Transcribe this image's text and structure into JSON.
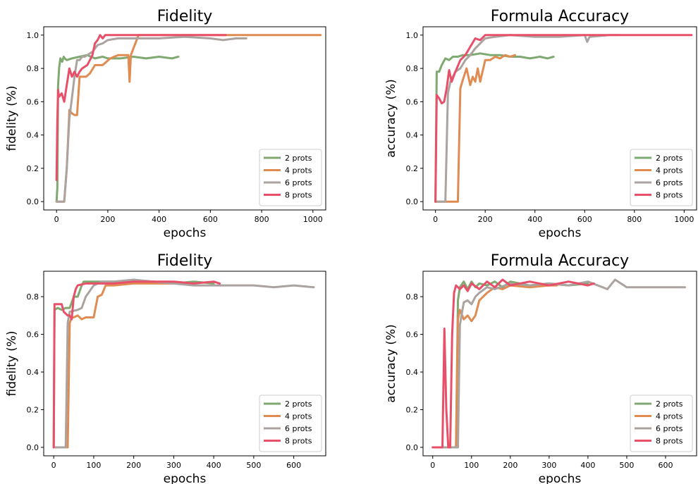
{
  "chart_data": [
    {
      "type": "line",
      "title": "Fidelity",
      "xlabel": "epochs",
      "ylabel": "fidelity (%)",
      "xlim": [
        -50,
        1050
      ],
      "ylim": [
        -0.05,
        1.05
      ],
      "xticks": [
        0,
        200,
        400,
        600,
        800,
        1000
      ],
      "yticks": [
        0.0,
        0.2,
        0.4,
        0.6,
        0.8,
        1.0
      ],
      "legend": "bottom-right",
      "series": [
        {
          "name": "2 prots",
          "color": "#7fa970",
          "x": [
            0,
            3,
            6,
            10,
            15,
            22,
            28,
            32,
            40,
            60,
            90,
            120,
            150,
            180,
            200,
            250,
            300,
            350,
            400,
            450,
            475
          ],
          "y": [
            0.0,
            0.08,
            0.7,
            0.8,
            0.86,
            0.84,
            0.87,
            0.86,
            0.85,
            0.86,
            0.87,
            0.88,
            0.86,
            0.87,
            0.86,
            0.86,
            0.87,
            0.86,
            0.87,
            0.86,
            0.87
          ]
        },
        {
          "name": "4 prots",
          "color": "#df8b52",
          "x": [
            0,
            20,
            30,
            40,
            50,
            60,
            70,
            80,
            90,
            100,
            115,
            130,
            150,
            180,
            210,
            240,
            280,
            285,
            290,
            320,
            400,
            500,
            600,
            700,
            800,
            900,
            1000,
            1030
          ],
          "y": [
            0.0,
            0.0,
            0.0,
            0.2,
            0.55,
            0.53,
            0.52,
            0.52,
            0.75,
            0.75,
            0.75,
            0.77,
            0.82,
            0.82,
            0.86,
            0.88,
            0.88,
            0.72,
            0.88,
            1.0,
            1.0,
            1.0,
            1.0,
            1.0,
            1.0,
            1.0,
            1.0,
            1.0
          ]
        },
        {
          "name": "6 prots",
          "color": "#aaa39f",
          "x": [
            0,
            30,
            40,
            50,
            60,
            70,
            80,
            90,
            100,
            110,
            140,
            160,
            180,
            200,
            240,
            300,
            400,
            500,
            600,
            650,
            700,
            740
          ],
          "y": [
            0.0,
            0.0,
            0.2,
            0.5,
            0.62,
            0.75,
            0.85,
            0.85,
            0.87,
            0.87,
            0.9,
            0.94,
            0.95,
            0.97,
            0.98,
            0.98,
            0.98,
            0.99,
            0.98,
            0.97,
            0.98,
            0.98
          ]
        },
        {
          "name": "8 prots",
          "color": "#e8506a",
          "x": [
            0,
            3,
            6,
            10,
            20,
            30,
            40,
            50,
            60,
            70,
            80,
            90,
            100,
            120,
            140,
            150,
            160,
            170,
            180,
            190,
            200,
            300,
            400,
            500,
            600,
            640,
            660
          ],
          "y": [
            0.13,
            0.48,
            0.67,
            0.63,
            0.65,
            0.6,
            0.7,
            0.8,
            0.75,
            0.78,
            0.75,
            0.78,
            0.8,
            0.82,
            0.88,
            0.95,
            0.97,
            1.0,
            0.98,
            1.0,
            1.0,
            1.0,
            1.0,
            1.0,
            1.0,
            1.0,
            1.0
          ]
        }
      ]
    },
    {
      "type": "line",
      "title": "Formula Accuracy",
      "xlabel": "epochs",
      "ylabel": "accuracy (%)",
      "xlim": [
        -50,
        1050
      ],
      "ylim": [
        -0.05,
        1.05
      ],
      "xticks": [
        0,
        200,
        400,
        600,
        800,
        1000
      ],
      "yticks": [
        0.0,
        0.2,
        0.4,
        0.6,
        0.8,
        1.0
      ],
      "legend": "bottom-right",
      "series": [
        {
          "name": "2 prots",
          "color": "#7fa970",
          "x": [
            0,
            5,
            15,
            25,
            40,
            55,
            70,
            90,
            110,
            140,
            180,
            220,
            260,
            300,
            340,
            380,
            420,
            450,
            475
          ],
          "y": [
            0.0,
            0.78,
            0.78,
            0.82,
            0.86,
            0.85,
            0.87,
            0.87,
            0.88,
            0.88,
            0.89,
            0.88,
            0.88,
            0.87,
            0.87,
            0.86,
            0.87,
            0.86,
            0.87
          ]
        },
        {
          "name": "4 prots",
          "color": "#df8b52",
          "x": [
            0,
            90,
            100,
            110,
            125,
            140,
            150,
            160,
            170,
            180,
            200,
            220,
            240,
            260,
            280,
            300,
            320
          ],
          "y": [
            0.0,
            0.0,
            0.68,
            0.73,
            0.8,
            0.7,
            0.75,
            0.72,
            0.8,
            0.72,
            0.85,
            0.85,
            0.87,
            0.86,
            0.88,
            0.87,
            0.88
          ]
        },
        {
          "name": "6 prots",
          "color": "#aaa39f",
          "x": [
            0,
            40,
            50,
            60,
            70,
            80,
            100,
            120,
            140,
            160,
            180,
            200,
            240,
            300,
            400,
            500,
            600,
            610,
            620,
            700,
            740
          ],
          "y": [
            0.0,
            0.0,
            0.65,
            0.72,
            0.75,
            0.78,
            0.8,
            0.85,
            0.88,
            0.92,
            0.95,
            0.98,
            0.99,
            1.0,
            0.99,
            0.99,
            1.0,
            0.96,
            0.99,
            1.0,
            1.0
          ]
        },
        {
          "name": "8 prots",
          "color": "#e8506a",
          "x": [
            0,
            5,
            15,
            25,
            35,
            45,
            55,
            65,
            80,
            100,
            120,
            140,
            160,
            180,
            200,
            300,
            400,
            500,
            600,
            700,
            800,
            900,
            1000,
            1030
          ],
          "y": [
            0.0,
            0.64,
            0.62,
            0.59,
            0.6,
            0.68,
            0.79,
            0.72,
            0.78,
            0.85,
            0.88,
            0.93,
            0.98,
            0.97,
            1.0,
            1.0,
            1.0,
            1.0,
            1.0,
            1.0,
            1.0,
            1.0,
            1.0,
            1.0
          ]
        }
      ]
    },
    {
      "type": "line",
      "title": "Fidelity",
      "xlabel": "epochs",
      "ylabel": "fidelity (%)",
      "xlim": [
        -25,
        680
      ],
      "ylim": [
        -0.045,
        0.935
      ],
      "xticks": [
        0,
        100,
        200,
        300,
        400,
        500,
        600
      ],
      "yticks": [
        0.0,
        0.2,
        0.4,
        0.6,
        0.8
      ],
      "legend": "bottom-right",
      "series": [
        {
          "name": "2 prots",
          "color": "#7fa970",
          "x": [
            0,
            2,
            10,
            20,
            30,
            40,
            50,
            60,
            70,
            75,
            80,
            100,
            150,
            200,
            250,
            300,
            350,
            400
          ],
          "y": [
            0.0,
            0.73,
            0.74,
            0.73,
            0.74,
            0.74,
            0.8,
            0.8,
            0.86,
            0.88,
            0.88,
            0.88,
            0.88,
            0.88,
            0.88,
            0.87,
            0.88,
            0.87
          ]
        },
        {
          "name": "4 prots",
          "color": "#df8b52",
          "x": [
            0,
            35,
            40,
            45,
            50,
            60,
            70,
            80,
            90,
            100,
            110,
            120,
            130,
            140,
            150,
            200,
            250,
            300,
            330
          ],
          "y": [
            0.0,
            0.0,
            0.66,
            0.69,
            0.69,
            0.7,
            0.68,
            0.69,
            0.69,
            0.69,
            0.8,
            0.81,
            0.86,
            0.86,
            0.86,
            0.87,
            0.87,
            0.87,
            0.87
          ]
        },
        {
          "name": "6 prots",
          "color": "#aaa39f",
          "x": [
            0,
            30,
            35,
            40,
            60,
            70,
            80,
            100,
            120,
            150,
            200,
            250,
            300,
            350,
            400,
            450,
            500,
            550,
            600,
            650
          ],
          "y": [
            0.0,
            0.0,
            0.66,
            0.72,
            0.73,
            0.74,
            0.8,
            0.86,
            0.88,
            0.88,
            0.89,
            0.88,
            0.87,
            0.86,
            0.86,
            0.86,
            0.86,
            0.85,
            0.86,
            0.85
          ]
        },
        {
          "name": "8 prots",
          "color": "#e8506a",
          "x": [
            0,
            2,
            20,
            25,
            30,
            35,
            40,
            45,
            50,
            55,
            60,
            80,
            100,
            150,
            200,
            250,
            300,
            350,
            400,
            415
          ],
          "y": [
            0.0,
            0.76,
            0.76,
            0.72,
            0.71,
            0.7,
            0.7,
            0.68,
            0.8,
            0.84,
            0.86,
            0.87,
            0.87,
            0.87,
            0.88,
            0.88,
            0.88,
            0.87,
            0.88,
            0.87
          ]
        }
      ]
    },
    {
      "type": "line",
      "title": "Formula Accuracy",
      "xlabel": "epochs",
      "ylabel": "accuracy (%)",
      "xlim": [
        -25,
        680
      ],
      "ylim": [
        -0.045,
        0.935
      ],
      "xticks": [
        0,
        100,
        200,
        300,
        400,
        500,
        600
      ],
      "yticks": [
        0.0,
        0.2,
        0.4,
        0.6,
        0.8
      ],
      "legend": "bottom-right",
      "series": [
        {
          "name": "2 prots",
          "color": "#7fa970",
          "x": [
            0,
            60,
            65,
            70,
            80,
            90,
            100,
            110,
            120,
            140,
            160,
            180,
            200,
            250,
            300,
            350,
            400
          ],
          "y": [
            0.0,
            0.0,
            0.78,
            0.85,
            0.88,
            0.84,
            0.88,
            0.85,
            0.87,
            0.86,
            0.88,
            0.85,
            0.88,
            0.86,
            0.87,
            0.86,
            0.87
          ]
        },
        {
          "name": "4 prots",
          "color": "#df8b52",
          "x": [
            0,
            60,
            65,
            70,
            80,
            90,
            100,
            110,
            120,
            140,
            160,
            180,
            200,
            250,
            300,
            320
          ],
          "y": [
            0.0,
            0.0,
            0.68,
            0.73,
            0.68,
            0.7,
            0.67,
            0.7,
            0.78,
            0.82,
            0.85,
            0.84,
            0.86,
            0.85,
            0.86,
            0.86
          ]
        },
        {
          "name": "6 prots",
          "color": "#aaa39f",
          "x": [
            0,
            65,
            70,
            80,
            90,
            100,
            110,
            120,
            140,
            160,
            200,
            250,
            300,
            350,
            400,
            450,
            470,
            500,
            550,
            600,
            650
          ],
          "y": [
            0.0,
            0.0,
            0.65,
            0.77,
            0.78,
            0.76,
            0.8,
            0.82,
            0.85,
            0.84,
            0.87,
            0.86,
            0.87,
            0.86,
            0.88,
            0.84,
            0.89,
            0.85,
            0.85,
            0.85,
            0.85
          ]
        },
        {
          "name": "8 prots",
          "color": "#e8506a",
          "x": [
            0,
            20,
            25,
            30,
            35,
            40,
            45,
            50,
            55,
            60,
            70,
            80,
            90,
            100,
            120,
            140,
            160,
            180,
            200,
            250,
            300,
            350,
            400,
            415
          ],
          "y": [
            0.0,
            0.0,
            0.0,
            0.63,
            0.2,
            0.0,
            0.0,
            0.6,
            0.82,
            0.86,
            0.84,
            0.86,
            0.83,
            0.87,
            0.84,
            0.88,
            0.85,
            0.89,
            0.86,
            0.88,
            0.86,
            0.88,
            0.86,
            0.87
          ]
        }
      ]
    }
  ]
}
